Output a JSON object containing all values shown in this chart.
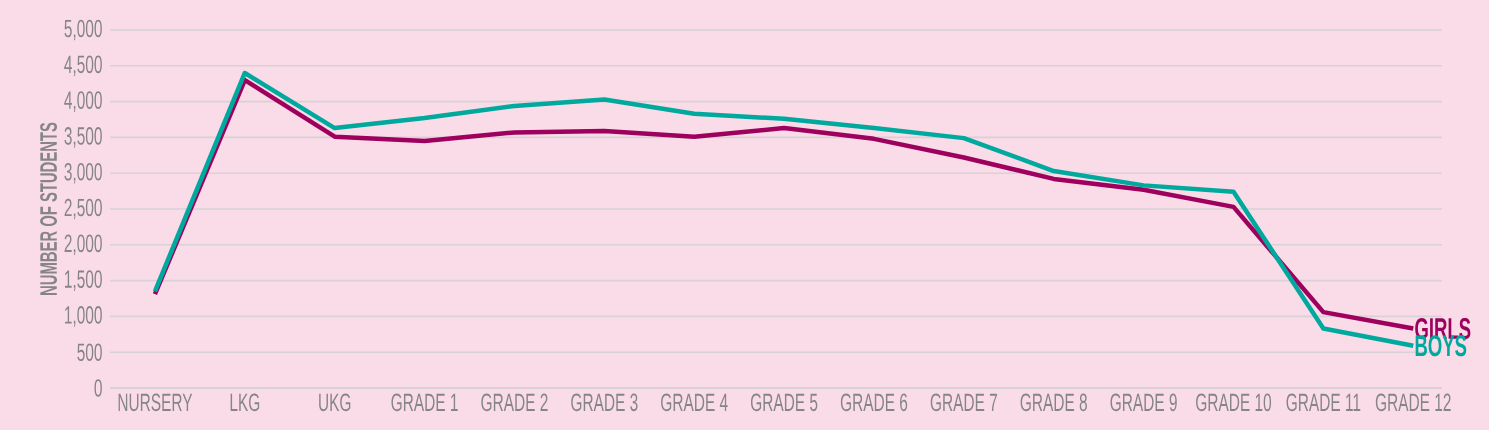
{
  "chart_data": {
    "type": "line",
    "ylabel": "NUMBER OF STUDENTS",
    "categories": [
      "NURSERY",
      "LKG",
      "UKG",
      "GRADE 1",
      "GRADE 2",
      "GRADE 3",
      "GRADE 4",
      "GRADE 5",
      "GRADE 6",
      "GRADE 7",
      "GRADE 8",
      "GRADE 9",
      "GRADE 10",
      "GRADE 11",
      "GRADE 12"
    ],
    "series": [
      {
        "name": "GIRLS",
        "color": "#9e005d",
        "values": [
          1310,
          4300,
          3510,
          3450,
          3570,
          3590,
          3510,
          3630,
          3480,
          3220,
          2920,
          2770,
          2530,
          1060,
          830
        ]
      },
      {
        "name": "BOYS",
        "color": "#00a99d",
        "values": [
          1350,
          4400,
          3630,
          3770,
          3940,
          4030,
          3830,
          3760,
          3630,
          3490,
          3030,
          2830,
          2740,
          830,
          590
        ]
      }
    ],
    "ylim": [
      0,
      5000
    ],
    "yticks": [
      {
        "value": 0,
        "label": "0"
      },
      {
        "value": 500,
        "label": "500"
      },
      {
        "value": 1000,
        "label": "1,000"
      },
      {
        "value": 1500,
        "label": "1,500"
      },
      {
        "value": 2000,
        "label": "2,000"
      },
      {
        "value": 2500,
        "label": "2,500"
      },
      {
        "value": 3000,
        "label": "3,000"
      },
      {
        "value": 3500,
        "label": "3,500"
      },
      {
        "value": 4000,
        "label": "4,000"
      },
      {
        "value": 4500,
        "label": "4,500"
      },
      {
        "value": 5000,
        "label": "5,000"
      }
    ],
    "grid": "y",
    "legend": false,
    "marker": "none",
    "line_style": "solid"
  }
}
